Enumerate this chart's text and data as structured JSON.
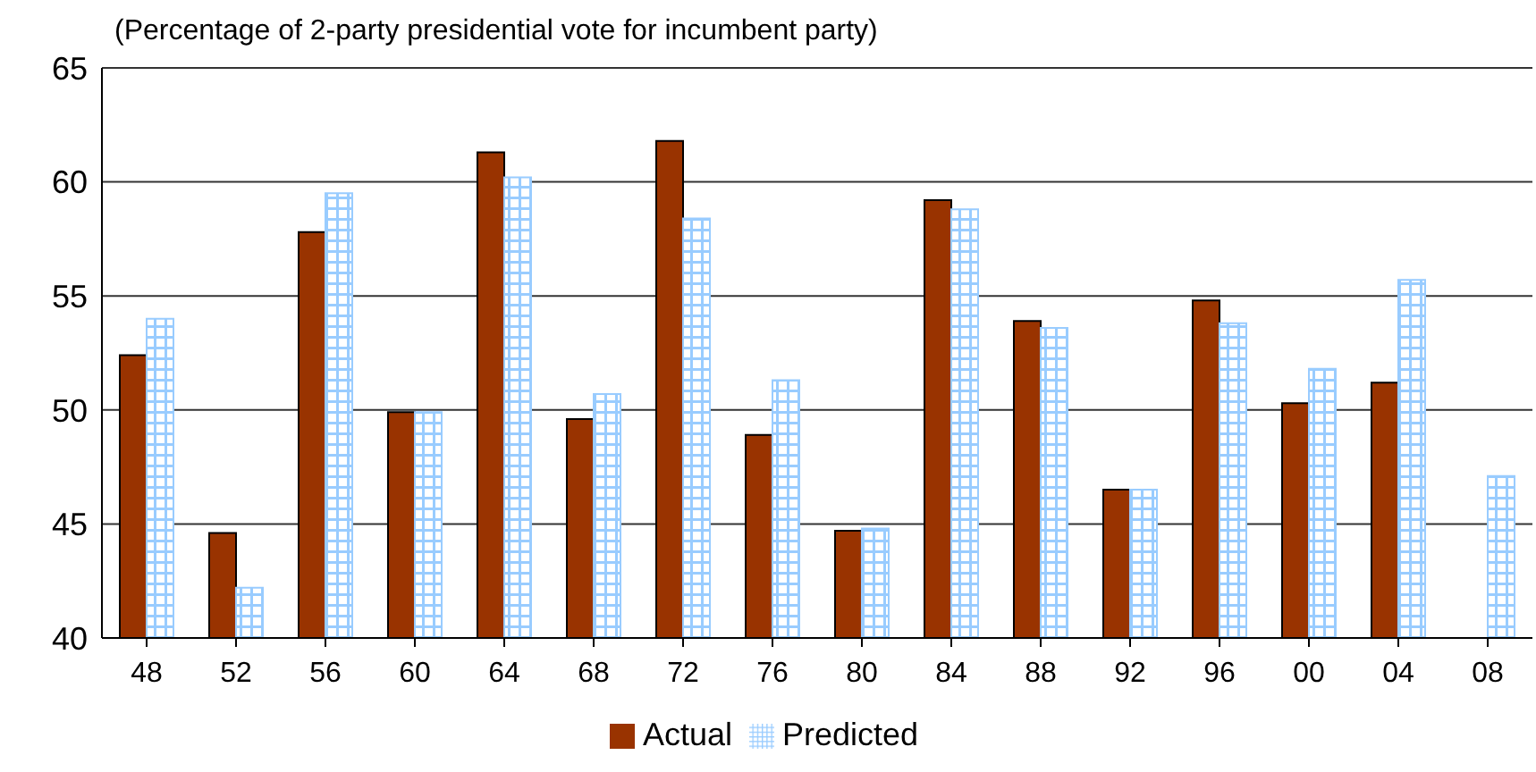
{
  "chart_data": {
    "type": "bar",
    "title": "(Percentage of 2-party presidential vote for incumbent party)",
    "categories": [
      "48",
      "52",
      "56",
      "60",
      "64",
      "68",
      "72",
      "76",
      "80",
      "84",
      "88",
      "92",
      "96",
      "00",
      "04",
      "08"
    ],
    "series": [
      {
        "name": "Actual",
        "color": "#993300",
        "values": [
          52.4,
          44.6,
          57.8,
          49.9,
          61.3,
          49.6,
          61.8,
          48.9,
          44.7,
          59.2,
          53.9,
          46.5,
          54.8,
          50.3,
          51.2,
          null
        ]
      },
      {
        "name": "Predicted",
        "color": "#99ccff",
        "values": [
          54.0,
          42.2,
          59.5,
          49.9,
          60.2,
          50.7,
          58.4,
          51.3,
          44.8,
          58.8,
          53.6,
          46.5,
          53.8,
          51.8,
          55.7,
          47.1
        ]
      }
    ],
    "ylim": [
      40,
      65
    ],
    "yticks": [
      40,
      45,
      50,
      55,
      60,
      65
    ],
    "grid": "y",
    "legend": "bottom"
  }
}
